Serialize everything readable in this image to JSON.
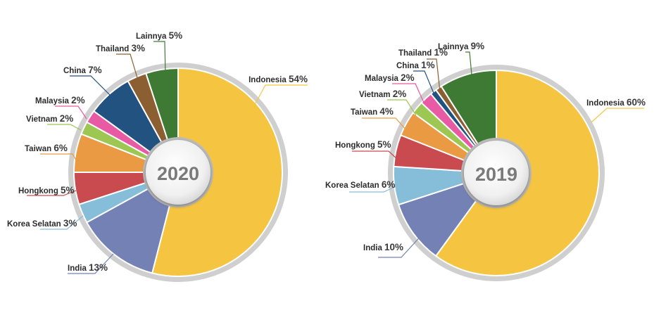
{
  "chart_data": [
    {
      "type": "pie",
      "center_label": "2020",
      "slices": [
        {
          "name": "Indonesia",
          "value": 54,
          "pct_label": "54%",
          "color": "#F5C542"
        },
        {
          "name": "India",
          "value": 13,
          "pct_label": "13%",
          "color": "#7481B5"
        },
        {
          "name": "Korea Selatan",
          "value": 3,
          "pct_label": "3%",
          "color": "#86BDD8"
        },
        {
          "name": "Hongkong",
          "value": 5,
          "pct_label": "5%",
          "color": "#C94A4F"
        },
        {
          "name": "Taiwan",
          "value": 6,
          "pct_label": "6%",
          "color": "#EA9A43"
        },
        {
          "name": "Vietnam",
          "value": 2,
          "pct_label": "2%",
          "color": "#9BC752"
        },
        {
          "name": "Malaysia",
          "value": 2,
          "pct_label": "2%",
          "color": "#E95AA4"
        },
        {
          "name": "China",
          "value": 7,
          "pct_label": "7%",
          "color": "#22527F"
        },
        {
          "name": "Thailand",
          "value": 3,
          "pct_label": "3%",
          "color": "#8C5F32"
        },
        {
          "name": "Lainnya",
          "value": 5,
          "pct_label": "5%",
          "color": "#3E7A33"
        }
      ]
    },
    {
      "type": "pie",
      "center_label": "2019",
      "slices": [
        {
          "name": "Indonesia",
          "value": 60,
          "pct_label": "60%",
          "color": "#F5C542"
        },
        {
          "name": "India",
          "value": 10,
          "pct_label": "10%",
          "color": "#7481B5"
        },
        {
          "name": "Korea Selatan",
          "value": 6,
          "pct_label": "6%",
          "color": "#86BDD8"
        },
        {
          "name": "Hongkong",
          "value": 5,
          "pct_label": "5%",
          "color": "#C94A4F"
        },
        {
          "name": "Taiwan",
          "value": 4,
          "pct_label": "4%",
          "color": "#EA9A43"
        },
        {
          "name": "Vietnam",
          "value": 2,
          "pct_label": "2%",
          "color": "#9BC752"
        },
        {
          "name": "Malaysia",
          "value": 2,
          "pct_label": "2%",
          "color": "#E95AA4"
        },
        {
          "name": "China",
          "value": 1,
          "pct_label": "1%",
          "color": "#22527F"
        },
        {
          "name": "Thailand",
          "value": 1,
          "pct_label": "1%",
          "color": "#8C5F32"
        },
        {
          "name": "Lainnya",
          "value": 9,
          "pct_label": "9%",
          "color": "#3E7A33"
        }
      ]
    }
  ]
}
